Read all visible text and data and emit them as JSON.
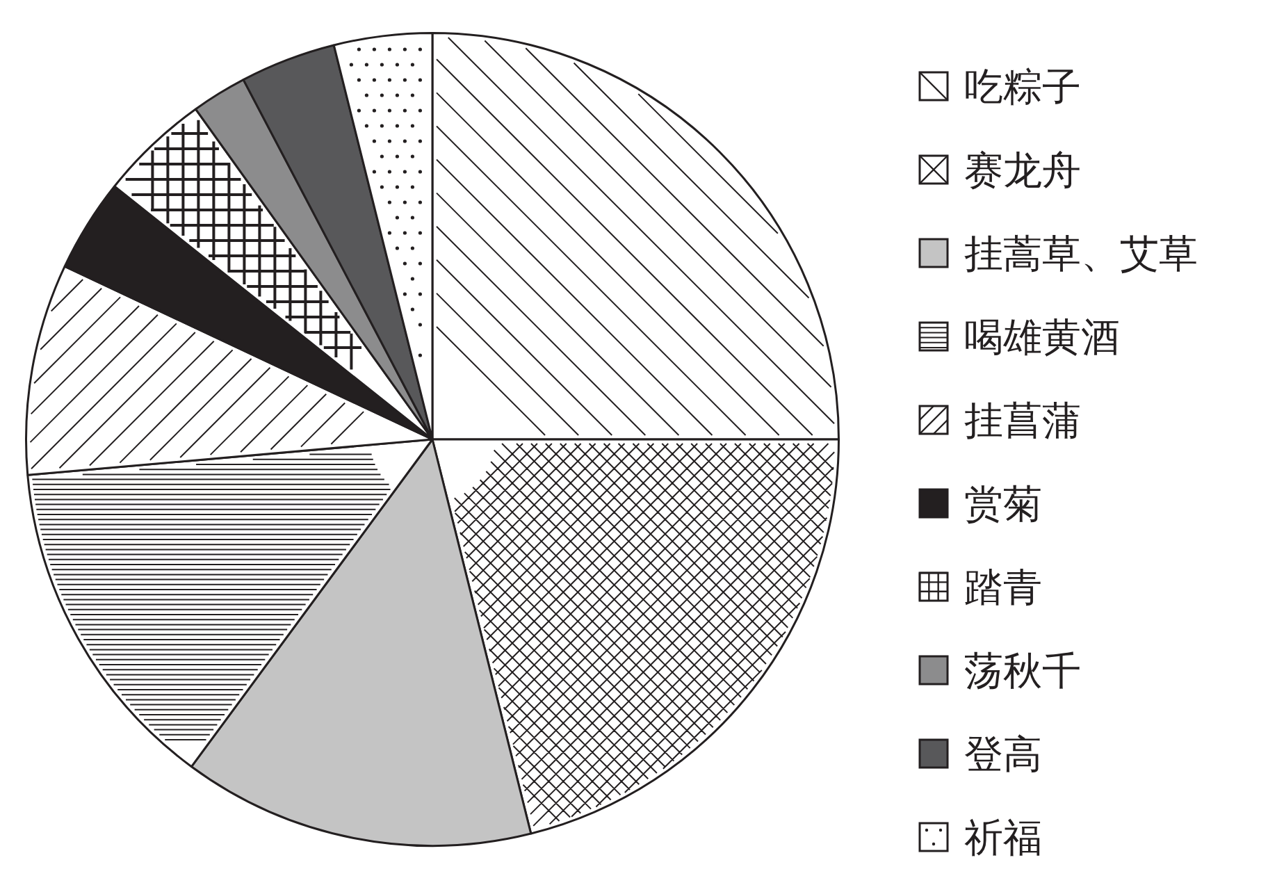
{
  "chart_data": {
    "type": "pie",
    "categories": [
      "吃粽子",
      "赛龙舟",
      "挂蒿草、艾草",
      "喝雄黄酒",
      "挂菖蒲",
      "赏菊",
      "踏青",
      "荡秋千",
      "登高",
      "祈福"
    ],
    "values": [
      25,
      21.1,
      14.0,
      13.5,
      8.4,
      3.7,
      4.4,
      2.2,
      3.8,
      3.9
    ],
    "colors": [
      "#ffffff",
      "#ffffff",
      "#c4c4c4",
      "#ffffff",
      "#ffffff",
      "#231f20",
      "#ffffff",
      "#8c8c8d",
      "#58585a",
      "#ffffff"
    ],
    "legend": "right"
  }
}
